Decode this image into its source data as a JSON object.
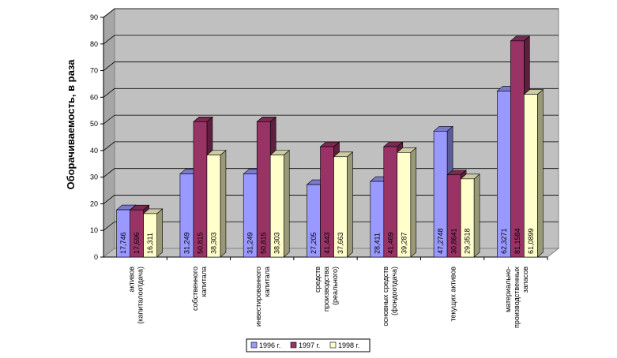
{
  "chart_data": {
    "type": "bar",
    "ylabel": "Оборачиваемость, в раза",
    "ylim": [
      0,
      90
    ],
    "yticks": [
      0,
      10,
      20,
      30,
      40,
      50,
      60,
      70,
      80,
      90
    ],
    "grid": true,
    "legend_position": "bottom",
    "categories": [
      [
        "активов",
        "(капиталоотдача)"
      ],
      [
        "собственного",
        "капитала"
      ],
      [
        "инвестированного",
        "капитала"
      ],
      [
        "средств",
        "производства",
        "(реального)"
      ],
      [
        "основных средств",
        "(фондоотдача)"
      ],
      [
        "текущих активов"
      ],
      [
        "материально-",
        "производственных",
        "запасов"
      ]
    ],
    "series": [
      {
        "name": "1996 г.",
        "color": "#9999ff",
        "values": [
          17.746,
          31.249,
          31.249,
          27.205,
          28.411,
          47.2748,
          62.3271
        ],
        "labels": [
          "17,746",
          "31,249",
          "31,249",
          "27,205",
          "28,411",
          "47,2748",
          "62,3271"
        ]
      },
      {
        "name": "1997 г.",
        "color": "#993366",
        "values": [
          17.696,
          50.815,
          50.815,
          41.443,
          41.469,
          30.8641,
          81.1584
        ],
        "labels": [
          "17,696",
          "50,815",
          "50,815",
          "41,443",
          "41,469",
          "30,8641",
          "81,1584"
        ]
      },
      {
        "name": "1998 г.",
        "color": "#ffffcc",
        "values": [
          16.311,
          38.303,
          38.303,
          37.663,
          39.287,
          29.3518,
          61.0899
        ],
        "labels": [
          "16,311",
          "38,303",
          "38,303",
          "37,663",
          "39,287",
          "29,3518",
          "61,0899"
        ]
      }
    ]
  }
}
